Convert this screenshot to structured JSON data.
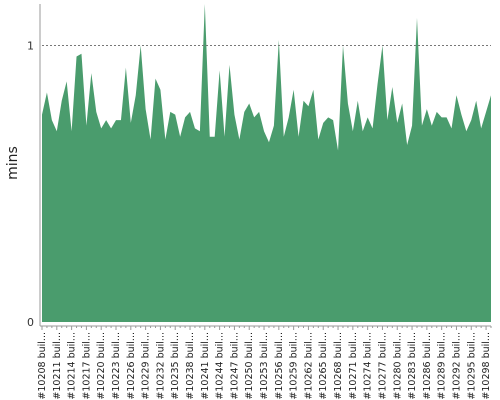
{
  "chart_data": {
    "type": "area",
    "ylabel": "mins",
    "ylim": [
      0,
      1.15
    ],
    "yticks": [
      "0",
      "1"
    ],
    "reference_line": {
      "y": 1,
      "style": "dotted"
    },
    "colors": {
      "fill": "#4a9c6d",
      "reference": "#777777",
      "axis": "#999999"
    },
    "series": [
      {
        "values": [
          0.75,
          0.83,
          0.73,
          0.69,
          0.8,
          0.87,
          0.69,
          0.96,
          0.97,
          0.71,
          0.9,
          0.76,
          0.7,
          0.73,
          0.7,
          0.73,
          0.73,
          0.92,
          0.72,
          0.82,
          1.0,
          0.77,
          0.66,
          0.88,
          0.84,
          0.66,
          0.76,
          0.75,
          0.67,
          0.74,
          0.76,
          0.7,
          0.69,
          1.15,
          0.67,
          0.67,
          0.91,
          0.67,
          0.93,
          0.75,
          0.66,
          0.76,
          0.79,
          0.74,
          0.76,
          0.69,
          0.65,
          0.71,
          1.02,
          0.67,
          0.74,
          0.84,
          0.67,
          0.8,
          0.78,
          0.84,
          0.66,
          0.72,
          0.74,
          0.73,
          0.62,
          1.0,
          0.79,
          0.69,
          0.8,
          0.69,
          0.74,
          0.7,
          0.86,
          1.0,
          0.73,
          0.85,
          0.72,
          0.79,
          0.64,
          0.71,
          1.1,
          0.71,
          0.77,
          0.71,
          0.76,
          0.74,
          0.74,
          0.7,
          0.82,
          0.75,
          0.69,
          0.73,
          0.8,
          0.7,
          0.76,
          0.82
        ]
      }
    ],
    "x_tick_labels": [
      "#10208 buil...",
      "#10211 buil...",
      "#10214 buil...",
      "#10217 buil...",
      "#10220 buil...",
      "#10223 buil...",
      "#10226 buil...",
      "#10229 buil...",
      "#10232 buil...",
      "#10235 buil...",
      "#10238 buil...",
      "#10241 buil...",
      "#10244 buil...",
      "#10247 buil...",
      "#10250 buil...",
      "#10253 buil...",
      "#10256 buil...",
      "#10259 buil...",
      "#10262 buil...",
      "#10265 buil...",
      "#10268 buil...",
      "#10271 buil...",
      "#10274 buil...",
      "#10277 buil...",
      "#10280 buil...",
      "#10283 buil...",
      "#10286 buil...",
      "#10289 buil...",
      "#10292 buil...",
      "#10295 buil...",
      "#10298 buil..."
    ]
  }
}
